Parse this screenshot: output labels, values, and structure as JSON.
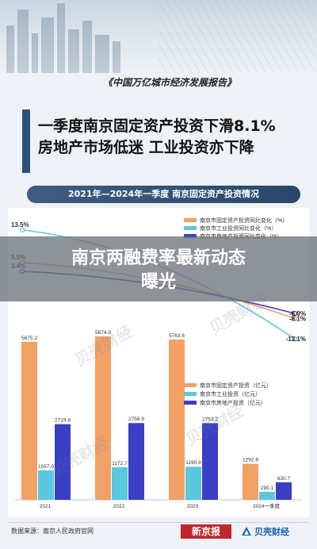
{
  "report_title": "《中国万亿城市经济发展报告》",
  "headline": {
    "line1": "一季度南京固定资产投资下滑8.1%",
    "line2": "房地产市场低迷 工业投资亦下降"
  },
  "section_title": "2021年—2024年一季度 南京固定资产投资情况",
  "overlay_title": {
    "line1": "南京两融费率最新动态",
    "line2": "曝光"
  },
  "watermark_text": "贝壳财经",
  "source": "数据来源：南京人民政府官网",
  "logos": {
    "xinjingbao": "新京报",
    "beike": "贝壳财经"
  },
  "colors": {
    "fixed": "#f3a064",
    "industrial": "#5bc7e0",
    "realestate": "#3a3fc4",
    "banner": "#6e747c",
    "pill": "#2f4e74"
  },
  "chart_data": {
    "type": "bar",
    "categories": [
      "2021",
      "2022",
      "2023",
      "2024一季度"
    ],
    "series": [
      {
        "name": "南京市固定资产投资（亿元）",
        "values": [
          5675.2,
          5874.9,
          5763.6,
          1292.9
        ],
        "value_labels": [
          "5675.2",
          "5874.9",
          "5763.6",
          "1292.9"
        ]
      },
      {
        "name": "南京市工业投资（亿元）",
        "values": [
          1057.0,
          1172.7,
          1190.9,
          290.1
        ],
        "value_labels": [
          "1057.0",
          "1172.7",
          "1190.9",
          "290.1"
        ]
      },
      {
        "name": "南京市房地产投资（亿元）",
        "values": [
          2719.8,
          2758.8,
          2753.2,
          630.7
        ],
        "value_labels": [
          "2719.8",
          "2758.8",
          "2753.2",
          "630.7"
        ]
      }
    ],
    "ylim": [
      0,
      6500
    ],
    "legend": "right",
    "line_series": [
      {
        "name": "南京市固定资产投资同比变化（%）",
        "values": [
          5.5,
          null,
          null,
          -8.1
        ],
        "start_label": "5.5%",
        "end_label": "-8.1%"
      },
      {
        "name": "南京市工业投资同比变化（%）",
        "values": [
          13.5,
          null,
          null,
          -13.1
        ],
        "start_label": "13.5%",
        "end_label": "-13.1%"
      },
      {
        "name": "南京市房地产投资同比变化（%）",
        "values": [
          3.4,
          null,
          null,
          -6.9
        ],
        "start_label": "3.4%",
        "end_label": "-6.9%"
      }
    ],
    "line_ylim": [
      -15,
      15
    ]
  }
}
